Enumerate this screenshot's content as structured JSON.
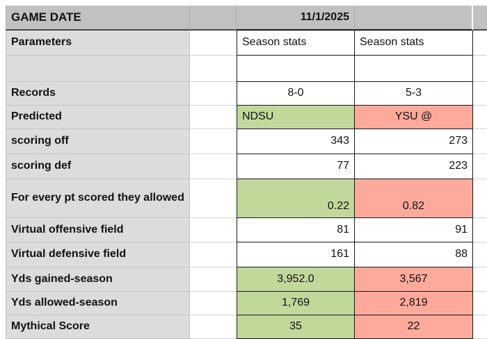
{
  "header": {
    "title": "GAME DATE",
    "game_date": "11/1/2025"
  },
  "colors": {
    "favored_green": "#c1d89b",
    "underdog_red": "#fdaa9c",
    "header_gray": "#c1c1c1",
    "label_gray": "#dcdcdc"
  },
  "teams": {
    "home": "NDSU",
    "away": "YSU @"
  },
  "rows": [
    {
      "key": "parameters",
      "label": "Parameters",
      "c1": "Season stats",
      "c2": "Season stats",
      "c1_color": "",
      "c2_color": ""
    },
    {
      "key": "blank",
      "label": "",
      "c1": "",
      "c2": "",
      "c1_color": "",
      "c2_color": ""
    },
    {
      "key": "records",
      "label": "Records",
      "c1": "8-0",
      "c2": "5-3",
      "c1_color": "",
      "c2_color": ""
    },
    {
      "key": "predicted",
      "label": "Predicted",
      "c1": "NDSU",
      "c2": "YSU @",
      "c1_color": "favored_green",
      "c2_color": "underdog_red"
    },
    {
      "key": "scoring-off",
      "label": "scoring off",
      "c1": "343",
      "c2": "273",
      "c1_color": "",
      "c2_color": ""
    },
    {
      "key": "scoring-def",
      "label": "scoring def",
      "c1": "77",
      "c2": "223",
      "c1_color": "",
      "c2_color": ""
    },
    {
      "key": "pt-ratio",
      "label": "For every pt scored they allowed",
      "c1": "0.22",
      "c2": "0.82",
      "c1_color": "favored_green",
      "c2_color": "underdog_red"
    },
    {
      "key": "virtual-off",
      "label": "Virtual offensive field",
      "c1": "81",
      "c2": "91",
      "c1_color": "",
      "c2_color": ""
    },
    {
      "key": "virtual-def",
      "label": "Virtual defensive field",
      "c1": "161",
      "c2": "88",
      "c1_color": "",
      "c2_color": ""
    },
    {
      "key": "yds-gained",
      "label": "Yds gained-season",
      "c1": "3,952.0",
      "c2": "3,567",
      "c1_color": "favored_green",
      "c2_color": "underdog_red"
    },
    {
      "key": "yds-allowed",
      "label": "Yds allowed-season",
      "c1": "1,769",
      "c2": "2,819",
      "c1_color": "favored_green",
      "c2_color": "underdog_red"
    },
    {
      "key": "mythical",
      "label": "Mythical Score",
      "c1": "35",
      "c2": "22",
      "c1_color": "favored_green",
      "c2_color": "underdog_red"
    }
  ]
}
